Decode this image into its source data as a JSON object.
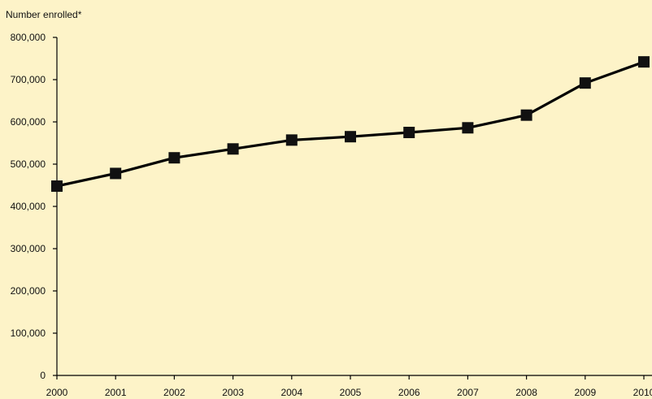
{
  "chart_data": {
    "type": "line",
    "ylabel": "Number enrolled*",
    "xlabel": "",
    "x": [
      "2000",
      "2001",
      "2002",
      "2003",
      "2004",
      "2005",
      "2006",
      "2007",
      "2008",
      "2009",
      "2010"
    ],
    "series": [
      {
        "values": [
          448000,
          478000,
          515000,
          536000,
          557000,
          565000,
          575000,
          586000,
          616000,
          692000,
          742000
        ]
      }
    ],
    "ylim": [
      0,
      800000
    ],
    "yticks": [
      0,
      100000,
      200000,
      300000,
      400000,
      500000,
      600000,
      700000,
      800000
    ],
    "ytick_labels": [
      "0",
      "100,000",
      "200,000",
      "300,000",
      "400,000",
      "500,000",
      "600,000",
      "700,000",
      "800,000"
    ],
    "grid": false,
    "colors": {
      "background": "#fdf3c8",
      "line": "#000000",
      "marker": "#111111"
    }
  }
}
